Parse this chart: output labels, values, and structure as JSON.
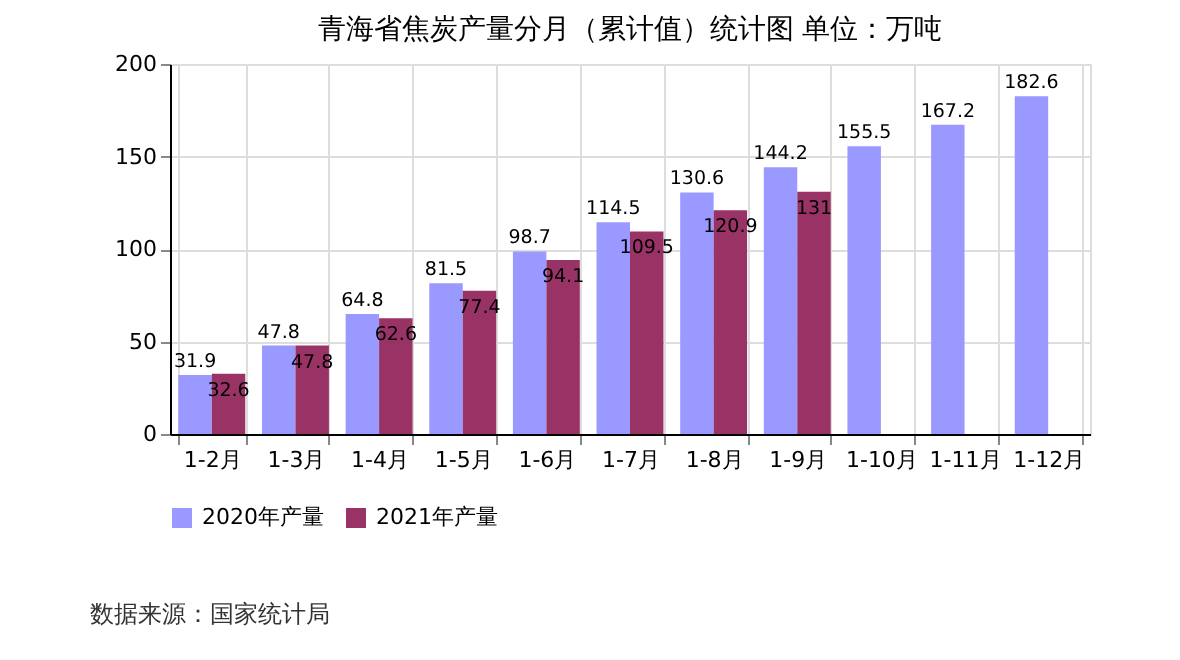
{
  "chart_data": {
    "type": "bar",
    "title": "青海省焦炭产量分月（累计值）统计图 单位：万吨",
    "categories": [
      "1-2月",
      "1-3月",
      "1-4月",
      "1-5月",
      "1-6月",
      "1-7月",
      "1-8月",
      "1-9月",
      "1-10月",
      "1-11月",
      "1-12月"
    ],
    "series": [
      {
        "name": "2020年产量",
        "color": "#9999ff",
        "values": [
          31.9,
          47.8,
          64.8,
          81.5,
          98.7,
          114.5,
          130.6,
          144.2,
          155.5,
          167.2,
          182.6
        ]
      },
      {
        "name": "2021年产量",
        "color": "#993366",
        "values": [
          32.6,
          47.8,
          62.6,
          77.4,
          94.1,
          109.5,
          120.9,
          131,
          null,
          null,
          null
        ]
      }
    ],
    "ylim": [
      0,
      200
    ],
    "yticks": [
      0,
      50,
      100,
      150,
      200
    ],
    "grid": true,
    "legend": "bottom",
    "data_labels": true,
    "annotations": [
      "数据来源：国家统计局"
    ]
  }
}
